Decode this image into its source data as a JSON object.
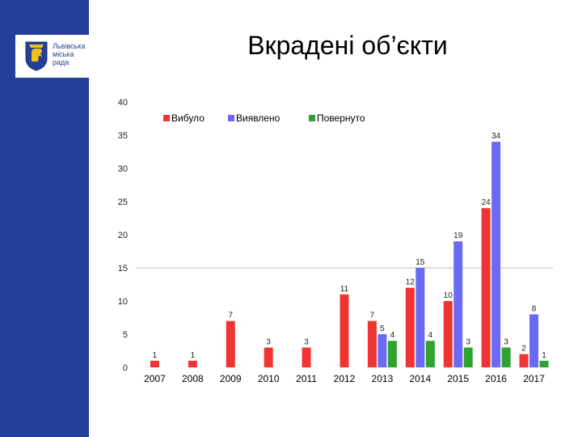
{
  "slide": {
    "title": "Вкрадені об’єкти",
    "logo": {
      "text": "Львівська\nміська\nрада",
      "icon": "lviv-city-coat-of-arms"
    }
  },
  "colors": {
    "side_band": "#233f99",
    "Вибуло": "#f03434",
    "Виявлено": "#6a6af4",
    "Повернуто": "#2ea42e"
  },
  "chart_data": {
    "type": "bar",
    "categories": [
      "2007",
      "2008",
      "2009",
      "2010",
      "2011",
      "2012",
      "2013",
      "2014",
      "2015",
      "2016",
      "2017"
    ],
    "series": [
      {
        "name": "Вибуло",
        "values": [
          1,
          1,
          7,
          3,
          3,
          11,
          7,
          12,
          10,
          24,
          2
        ]
      },
      {
        "name": "Виявлено",
        "values": [
          null,
          null,
          null,
          null,
          null,
          null,
          5,
          15,
          19,
          34,
          8
        ]
      },
      {
        "name": "Повернуто",
        "values": [
          null,
          null,
          null,
          null,
          null,
          null,
          4,
          4,
          3,
          3,
          1
        ]
      }
    ],
    "ylim": [
      0,
      40
    ],
    "yticks": [
      0,
      5,
      10,
      15,
      20,
      25,
      30,
      35,
      40
    ],
    "grid": false,
    "legend": "top"
  }
}
